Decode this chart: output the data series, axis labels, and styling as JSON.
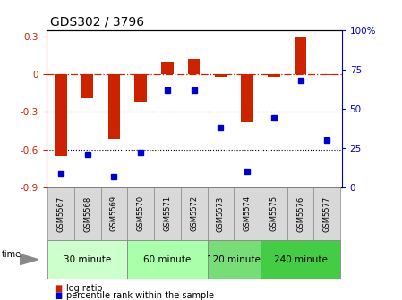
{
  "title": "GDS302 / 3796",
  "samples": [
    "GSM5567",
    "GSM5568",
    "GSM5569",
    "GSM5570",
    "GSM5571",
    "GSM5572",
    "GSM5573",
    "GSM5574",
    "GSM5575",
    "GSM5576",
    "GSM5577"
  ],
  "log_ratio": [
    -0.65,
    -0.19,
    -0.52,
    -0.22,
    0.1,
    0.12,
    -0.02,
    -0.38,
    -0.02,
    0.29,
    -0.01
  ],
  "percentile": [
    9,
    21,
    7,
    22,
    62,
    62,
    38,
    10,
    44,
    68,
    30
  ],
  "groups": [
    {
      "label": "30 minute",
      "start": 0,
      "end": 3,
      "color": "#ccffcc"
    },
    {
      "label": "60 minute",
      "start": 3,
      "end": 6,
      "color": "#aaffaa"
    },
    {
      "label": "120 minute",
      "start": 6,
      "end": 8,
      "color": "#77dd77"
    },
    {
      "label": "240 minute",
      "start": 8,
      "end": 11,
      "color": "#44cc44"
    }
  ],
  "bar_color": "#cc2200",
  "dot_color": "#0000cc",
  "ylim_left": [
    -0.9,
    0.35
  ],
  "ylim_right": [
    0,
    100
  ],
  "yticks_left": [
    0.3,
    0.0,
    -0.3,
    -0.6,
    -0.9
  ],
  "yticks_right": [
    100,
    75,
    50,
    25,
    0
  ],
  "dotted_lines": [
    -0.3,
    -0.6
  ],
  "legend_log": "log ratio",
  "legend_pct": "percentile rank within the sample",
  "bar_width": 0.45
}
